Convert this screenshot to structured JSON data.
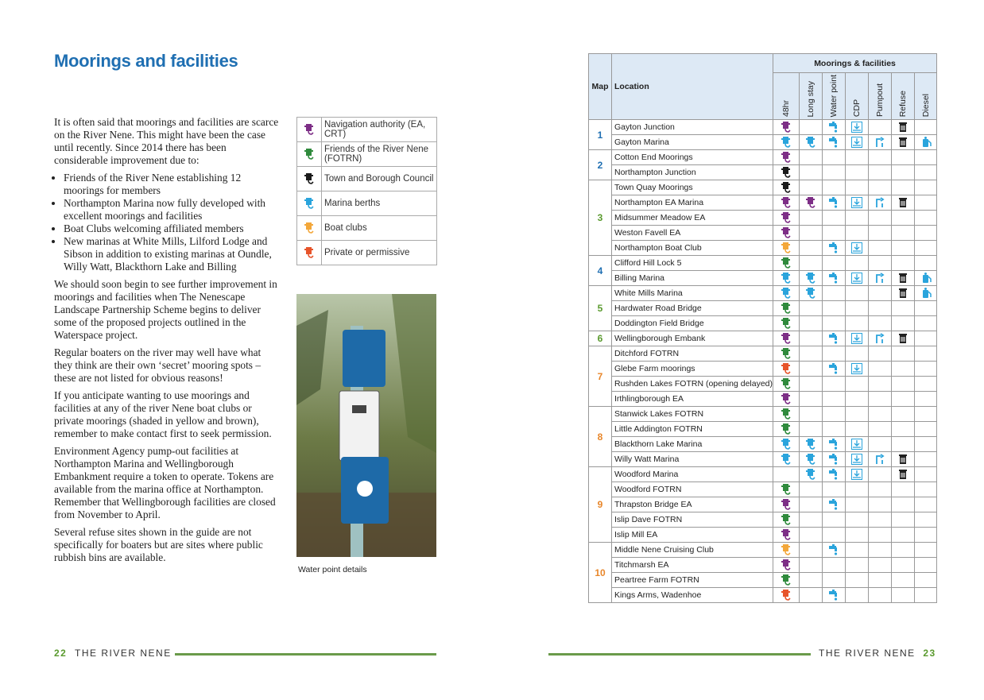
{
  "left_page": {
    "title": "Moorings and facilities",
    "intro": "It is often said that moorings and facilities are scarce on the River Nene. This might have been the case until recently. Since 2014 there has been considerable improvement due to:",
    "bullets": [
      "Friends of the River Nene establishing 12 moorings for members",
      "Northampton Marina now fully developed with excellent moorings and facilities",
      "Boat Clubs welcoming affiliated members",
      "New marinas at White Mills, Lilford Lodge and Sibson in addition to existing marinas at Oundle, Willy Watt, Blackthorn Lake and Billing"
    ],
    "paragraphs": [
      "We should soon begin to see further improvement in moorings and facilities when The Nenescape Landscape Partnership Scheme begins to deliver some of the proposed projects outlined in the Waterspace project.",
      "Regular boaters on the river may well have what they think are their own ‘secret’ mooring spots – these are not listed for obvious reasons!",
      "If you anticipate wanting to use moorings and facilities at any of the river Nene boat clubs or private moorings (shaded in yellow and brown), remember to make contact first to seek permission.",
      "Environment Agency pump-out facilities at Northampton Marina and Wellingborough Embankment require a token to operate. Tokens are available from the marina office at Northampton. Remember that Wellingborough facilities are closed from November to April.",
      "Several refuse sites shown in the guide are not specifically for boaters but are sites where public rubbish bins are available."
    ],
    "legend": [
      {
        "label": "Navigation authority (EA, CRT)",
        "color": "#7d2e86"
      },
      {
        "label": "Friends of the River Nene (FOTRN)",
        "color": "#2f8a3c"
      },
      {
        "label": "Town and Borough Council",
        "color": "#1a1a1a"
      },
      {
        "label": "Marina berths",
        "color": "#2aa4dc"
      },
      {
        "label": "Boat clubs",
        "color": "#f3a73a"
      },
      {
        "label": "Private or permissive",
        "color": "#e7542a"
      }
    ],
    "caption": "Water point details",
    "footer": {
      "page": "22",
      "title": "THE RIVER NENE"
    }
  },
  "right_page": {
    "footer": {
      "page": "23",
      "title": "THE RIVER NENE"
    }
  },
  "table": {
    "header": {
      "map": "Map",
      "location": "Location",
      "group": "Moorings & facilities"
    },
    "columns": [
      "48hr",
      "Long stay",
      "Water point",
      "CDP",
      "Pumpout",
      "Refuse",
      "Diesel"
    ],
    "groups": [
      {
        "map": "1",
        "color": "#1f6fb2",
        "rows": [
          {
            "location": "Gayton Junction",
            "moorings": [
              "#7d2e86",
              null
            ],
            "facilities": [
              true,
              true,
              false,
              true,
              false
            ]
          },
          {
            "location": "Gayton Marina",
            "moorings": [
              "#2aa4dc",
              "#2aa4dc"
            ],
            "facilities": [
              true,
              true,
              true,
              true,
              true
            ]
          }
        ]
      },
      {
        "map": "2",
        "color": "#1f6fb2",
        "rows": [
          {
            "location": "Cotton End Moorings",
            "moorings": [
              "#7d2e86",
              null
            ],
            "facilities": [
              false,
              false,
              false,
              false,
              false
            ]
          },
          {
            "location": "Northampton Junction",
            "moorings": [
              "#1a1a1a",
              null
            ],
            "facilities": [
              false,
              false,
              false,
              false,
              false
            ]
          }
        ]
      },
      {
        "map": "3",
        "color": "#5a9a2e",
        "rows": [
          {
            "location": "Town Quay Moorings",
            "moorings": [
              "#1a1a1a",
              null
            ],
            "facilities": [
              false,
              false,
              false,
              false,
              false
            ]
          },
          {
            "location": "Northampton EA Marina",
            "moorings": [
              "#7d2e86",
              "#7d2e86"
            ],
            "facilities": [
              true,
              true,
              true,
              true,
              false
            ]
          },
          {
            "location": "Midsummer Meadow EA",
            "moorings": [
              "#7d2e86",
              null
            ],
            "facilities": [
              false,
              false,
              false,
              false,
              false
            ]
          },
          {
            "location": "Weston Favell EA",
            "moorings": [
              "#7d2e86",
              null
            ],
            "facilities": [
              false,
              false,
              false,
              false,
              false
            ]
          },
          {
            "location": "Northampton Boat Club",
            "moorings": [
              "#f3a73a",
              null
            ],
            "facilities": [
              true,
              true,
              false,
              false,
              false
            ]
          }
        ]
      },
      {
        "map": "4",
        "color": "#1f6fb2",
        "rows": [
          {
            "location": "Clifford Hill Lock 5",
            "moorings": [
              "#2f8a3c",
              null
            ],
            "facilities": [
              false,
              false,
              false,
              false,
              false
            ]
          },
          {
            "location": "Billing Marina",
            "moorings": [
              "#2aa4dc",
              "#2aa4dc"
            ],
            "facilities": [
              true,
              true,
              true,
              true,
              true
            ]
          }
        ]
      },
      {
        "map": "5",
        "color": "#5a9a2e",
        "rows": [
          {
            "location": "White Mills Marina",
            "moorings": [
              "#2aa4dc",
              "#2aa4dc"
            ],
            "facilities": [
              false,
              false,
              false,
              true,
              true
            ]
          },
          {
            "location": "Hardwater Road Bridge",
            "moorings": [
              "#2f8a3c",
              null
            ],
            "facilities": [
              false,
              false,
              false,
              false,
              false
            ]
          },
          {
            "location": "Doddington Field Bridge",
            "moorings": [
              "#2f8a3c",
              null
            ],
            "facilities": [
              false,
              false,
              false,
              false,
              false
            ]
          }
        ]
      },
      {
        "map": "6",
        "color": "#5a9a2e",
        "rows": [
          {
            "location": "Wellingborough Embank",
            "moorings": [
              "#7d2e86",
              null
            ],
            "facilities": [
              true,
              true,
              true,
              true,
              false
            ]
          }
        ]
      },
      {
        "map": "7",
        "color": "#e8862a",
        "rows": [
          {
            "location": "Ditchford FOTRN",
            "moorings": [
              "#2f8a3c",
              null
            ],
            "facilities": [
              false,
              false,
              false,
              false,
              false
            ]
          },
          {
            "location": "Glebe Farm moorings",
            "moorings": [
              "#e7542a",
              null
            ],
            "facilities": [
              true,
              true,
              false,
              false,
              false
            ]
          },
          {
            "location": "Rushden Lakes FOTRN (opening delayed)",
            "moorings": [
              "#2f8a3c",
              null
            ],
            "facilities": [
              false,
              false,
              false,
              false,
              false
            ]
          },
          {
            "location": "Irthlingborough EA",
            "moorings": [
              "#7d2e86",
              null
            ],
            "facilities": [
              false,
              false,
              false,
              false,
              false
            ]
          }
        ]
      },
      {
        "map": "8",
        "color": "#e8862a",
        "rows": [
          {
            "location": "Stanwick Lakes FOTRN",
            "moorings": [
              "#2f8a3c",
              null
            ],
            "facilities": [
              false,
              false,
              false,
              false,
              false
            ]
          },
          {
            "location": "Little Addington FOTRN",
            "moorings": [
              "#2f8a3c",
              null
            ],
            "facilities": [
              false,
              false,
              false,
              false,
              false
            ]
          },
          {
            "location": "Blackthorn Lake Marina",
            "moorings": [
              "#2aa4dc",
              "#2aa4dc"
            ],
            "facilities": [
              true,
              true,
              false,
              false,
              false
            ]
          },
          {
            "location": "Willy Watt Marina",
            "moorings": [
              "#2aa4dc",
              "#2aa4dc"
            ],
            "facilities": [
              true,
              true,
              true,
              true,
              false
            ]
          }
        ]
      },
      {
        "map": "9",
        "color": "#e8862a",
        "rows": [
          {
            "location": "Woodford Marina",
            "moorings": [
              null,
              "#2aa4dc"
            ],
            "facilities": [
              true,
              true,
              false,
              true,
              false
            ]
          },
          {
            "location": "Woodford FOTRN",
            "moorings": [
              "#2f8a3c",
              null
            ],
            "facilities": [
              false,
              false,
              false,
              false,
              false
            ]
          },
          {
            "location": "Thrapston Bridge EA",
            "moorings": [
              "#7d2e86",
              null
            ],
            "facilities": [
              true,
              false,
              false,
              false,
              false
            ]
          },
          {
            "location": "Islip Dave FOTRN",
            "moorings": [
              "#2f8a3c",
              null
            ],
            "facilities": [
              false,
              false,
              false,
              false,
              false
            ]
          },
          {
            "location": "Islip Mill EA",
            "moorings": [
              "#7d2e86",
              null
            ],
            "facilities": [
              false,
              false,
              false,
              false,
              false
            ]
          }
        ]
      },
      {
        "map": "10",
        "color": "#e8862a",
        "rows": [
          {
            "location": "Middle Nene Cruising Club",
            "moorings": [
              "#f3a73a",
              null
            ],
            "facilities": [
              true,
              false,
              false,
              false,
              false
            ]
          },
          {
            "location": "Titchmarsh EA",
            "moorings": [
              "#7d2e86",
              null
            ],
            "facilities": [
              false,
              false,
              false,
              false,
              false
            ]
          },
          {
            "location": "Peartree Farm FOTRN",
            "moorings": [
              "#2f8a3c",
              null
            ],
            "facilities": [
              false,
              false,
              false,
              false,
              false
            ]
          },
          {
            "location": "Kings Arms, Wadenhoe",
            "moorings": [
              "#e7542a",
              null
            ],
            "facilities": [
              true,
              false,
              false,
              false,
              false
            ]
          }
        ]
      }
    ]
  }
}
